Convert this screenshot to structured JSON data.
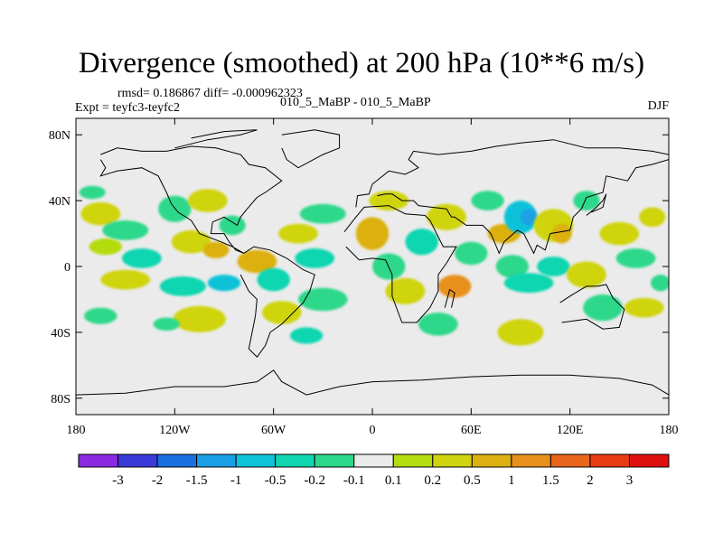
{
  "chart_data": {
    "type": "heatmap",
    "title": "Divergence (smoothed) at 200 hPa (10**6 m/s)",
    "stats_text": "rmsd= 0.186867 diff= -0.000962323",
    "expt_text": "Expt = teyfc3-teyfc2",
    "cases_text": "010_5_MaBP - 010_5_MaBP",
    "season": "DJF",
    "x_ticks": [
      {
        "value": -180,
        "label": "180"
      },
      {
        "value": -120,
        "label": "120W"
      },
      {
        "value": -60,
        "label": "60W"
      },
      {
        "value": 0,
        "label": "0"
      },
      {
        "value": 60,
        "label": "60E"
      },
      {
        "value": 120,
        "label": "120E"
      },
      {
        "value": 180,
        "label": "180"
      }
    ],
    "y_ticks": [
      {
        "value": 80,
        "label": "80N"
      },
      {
        "value": 40,
        "label": "40N"
      },
      {
        "value": 0,
        "label": "0"
      },
      {
        "value": -40,
        "label": "40S"
      },
      {
        "value": -80,
        "label": "80S"
      }
    ],
    "xlim": [
      -180,
      180
    ],
    "ylim": [
      -90,
      90
    ],
    "colorbar": {
      "levels": [
        "-3",
        "-2",
        "-1.5",
        "-1",
        "-0.5",
        "-0.2",
        "-0.1",
        "0.1",
        "0.2",
        "0.5",
        "1",
        "1.5",
        "2",
        "3"
      ],
      "colors": [
        "#8a2be2",
        "#3a3ad8",
        "#1a6fe0",
        "#1aa0e6",
        "#10c2d8",
        "#10d6b0",
        "#2ed88a",
        "#ebebeb",
        "#b4dc10",
        "#cfd40e",
        "#dcb010",
        "#e8901c",
        "#e8661c",
        "#e83c14",
        "#e01010"
      ]
    },
    "blobs": [
      {
        "lon": -165,
        "lat": 32,
        "rlon": 12,
        "rlat": 7,
        "bin": 9
      },
      {
        "lon": -150,
        "lat": 22,
        "rlon": 14,
        "rlat": 6,
        "bin": 6
      },
      {
        "lon": -162,
        "lat": 12,
        "rlon": 10,
        "rlat": 5,
        "bin": 8
      },
      {
        "lon": -140,
        "lat": 5,
        "rlon": 12,
        "rlat": 6,
        "bin": 5
      },
      {
        "lon": -150,
        "lat": -8,
        "rlon": 15,
        "rlat": 6,
        "bin": 9
      },
      {
        "lon": -165,
        "lat": -30,
        "rlon": 10,
        "rlat": 5,
        "bin": 6
      },
      {
        "lon": -120,
        "lat": 35,
        "rlon": 10,
        "rlat": 8,
        "bin": 6
      },
      {
        "lon": -100,
        "lat": 40,
        "rlon": 12,
        "rlat": 7,
        "bin": 9
      },
      {
        "lon": -110,
        "lat": 15,
        "rlon": 12,
        "rlat": 7,
        "bin": 9
      },
      {
        "lon": -95,
        "lat": 10,
        "rlon": 8,
        "rlat": 5,
        "bin": 10
      },
      {
        "lon": -115,
        "lat": -12,
        "rlon": 14,
        "rlat": 6,
        "bin": 5
      },
      {
        "lon": -90,
        "lat": -10,
        "rlon": 10,
        "rlat": 5,
        "bin": 4
      },
      {
        "lon": -105,
        "lat": -32,
        "rlon": 16,
        "rlat": 8,
        "bin": 9
      },
      {
        "lon": -125,
        "lat": -35,
        "rlon": 8,
        "rlat": 4,
        "bin": 6
      },
      {
        "lon": -85,
        "lat": 25,
        "rlon": 8,
        "rlat": 6,
        "bin": 6
      },
      {
        "lon": -70,
        "lat": 3,
        "rlon": 12,
        "rlat": 7,
        "bin": 10
      },
      {
        "lon": -60,
        "lat": -8,
        "rlon": 10,
        "rlat": 7,
        "bin": 5
      },
      {
        "lon": -55,
        "lat": -28,
        "rlon": 12,
        "rlat": 7,
        "bin": 9
      },
      {
        "lon": -45,
        "lat": 20,
        "rlon": 12,
        "rlat": 6,
        "bin": 9
      },
      {
        "lon": -30,
        "lat": 32,
        "rlon": 14,
        "rlat": 6,
        "bin": 6
      },
      {
        "lon": -35,
        "lat": 5,
        "rlon": 12,
        "rlat": 6,
        "bin": 5
      },
      {
        "lon": -30,
        "lat": -20,
        "rlon": 15,
        "rlat": 7,
        "bin": 6
      },
      {
        "lon": -40,
        "lat": -42,
        "rlon": 10,
        "rlat": 5,
        "bin": 5
      },
      {
        "lon": 0,
        "lat": 20,
        "rlon": 10,
        "rlat": 10,
        "bin": 10
      },
      {
        "lon": 10,
        "lat": 40,
        "rlon": 12,
        "rlat": 6,
        "bin": 9
      },
      {
        "lon": 10,
        "lat": 0,
        "rlon": 10,
        "rlat": 8,
        "bin": 6
      },
      {
        "lon": 20,
        "lat": -15,
        "rlon": 12,
        "rlat": 8,
        "bin": 9
      },
      {
        "lon": 30,
        "lat": 15,
        "rlon": 10,
        "rlat": 8,
        "bin": 5
      },
      {
        "lon": 45,
        "lat": 30,
        "rlon": 12,
        "rlat": 8,
        "bin": 9
      },
      {
        "lon": 50,
        "lat": -12,
        "rlon": 10,
        "rlat": 7,
        "bin": 11
      },
      {
        "lon": 60,
        "lat": 8,
        "rlon": 10,
        "rlat": 7,
        "bin": 6
      },
      {
        "lon": 40,
        "lat": -35,
        "rlon": 12,
        "rlat": 7,
        "bin": 6
      },
      {
        "lon": 70,
        "lat": 40,
        "rlon": 10,
        "rlat": 6,
        "bin": 6
      },
      {
        "lon": 80,
        "lat": 20,
        "rlon": 10,
        "rlat": 6,
        "bin": 10
      },
      {
        "lon": 90,
        "lat": 30,
        "rlon": 10,
        "rlat": 10,
        "bin": 4
      },
      {
        "lon": 95,
        "lat": 30,
        "rlon": 5,
        "rlat": 5,
        "bin": 3
      },
      {
        "lon": 85,
        "lat": 0,
        "rlon": 10,
        "rlat": 7,
        "bin": 6
      },
      {
        "lon": 95,
        "lat": -10,
        "rlon": 15,
        "rlat": 6,
        "bin": 5
      },
      {
        "lon": 110,
        "lat": 25,
        "rlon": 12,
        "rlat": 10,
        "bin": 9
      },
      {
        "lon": 115,
        "lat": 20,
        "rlon": 6,
        "rlat": 6,
        "bin": 10
      },
      {
        "lon": 110,
        "lat": 0,
        "rlon": 10,
        "rlat": 6,
        "bin": 5
      },
      {
        "lon": 90,
        "lat": -40,
        "rlon": 14,
        "rlat": 8,
        "bin": 9
      },
      {
        "lon": 130,
        "lat": 40,
        "rlon": 8,
        "rlat": 6,
        "bin": 6
      },
      {
        "lon": 130,
        "lat": -5,
        "rlon": 12,
        "rlat": 8,
        "bin": 9
      },
      {
        "lon": 140,
        "lat": -25,
        "rlon": 12,
        "rlat": 8,
        "bin": 6
      },
      {
        "lon": 150,
        "lat": 20,
        "rlon": 12,
        "rlat": 7,
        "bin": 9
      },
      {
        "lon": 160,
        "lat": 5,
        "rlon": 12,
        "rlat": 6,
        "bin": 6
      },
      {
        "lon": 170,
        "lat": 30,
        "rlon": 8,
        "rlat": 6,
        "bin": 9
      },
      {
        "lon": 165,
        "lat": -25,
        "rlon": 12,
        "rlat": 6,
        "bin": 9
      },
      {
        "lon": 175,
        "lat": -10,
        "rlon": 6,
        "rlat": 5,
        "bin": 6
      },
      {
        "lon": -170,
        "lat": 45,
        "rlon": 8,
        "rlat": 4,
        "bin": 6
      }
    ],
    "coastlines": [
      {
        "name": "greenland",
        "points": [
          [
            -55,
            80
          ],
          [
            -35,
            83
          ],
          [
            -20,
            80
          ],
          [
            -20,
            72
          ],
          [
            -30,
            68
          ],
          [
            -45,
            60
          ],
          [
            -52,
            65
          ],
          [
            -55,
            72
          ]
        ]
      },
      {
        "name": "north-america",
        "points": [
          [
            -165,
            68
          ],
          [
            -155,
            72
          ],
          [
            -140,
            70
          ],
          [
            -125,
            70
          ],
          [
            -110,
            73
          ],
          [
            -95,
            72
          ],
          [
            -80,
            68
          ],
          [
            -75,
            62
          ],
          [
            -65,
            60
          ],
          [
            -55,
            52
          ],
          [
            -65,
            45
          ],
          [
            -70,
            42
          ],
          [
            -76,
            35
          ],
          [
            -80,
            30
          ],
          [
            -82,
            25
          ],
          [
            -90,
            30
          ],
          [
            -97,
            27
          ],
          [
            -98,
            20
          ],
          [
            -90,
            20
          ],
          [
            -87,
            15
          ],
          [
            -83,
            10
          ],
          [
            -78,
            8
          ],
          [
            -85,
            12
          ],
          [
            -92,
            15
          ],
          [
            -105,
            20
          ],
          [
            -110,
            28
          ],
          [
            -118,
            33
          ],
          [
            -122,
            38
          ],
          [
            -125,
            45
          ],
          [
            -130,
            55
          ],
          [
            -140,
            60
          ],
          [
            -155,
            58
          ],
          [
            -165,
            55
          ],
          [
            -162,
            60
          ],
          [
            -165,
            65
          ]
        ]
      },
      {
        "name": "south-america",
        "points": [
          [
            -78,
            8
          ],
          [
            -72,
            12
          ],
          [
            -62,
            10
          ],
          [
            -52,
            5
          ],
          [
            -42,
            -2
          ],
          [
            -35,
            -5
          ],
          [
            -38,
            -15
          ],
          [
            -42,
            -22
          ],
          [
            -48,
            -28
          ],
          [
            -55,
            -35
          ],
          [
            -62,
            -40
          ],
          [
            -65,
            -48
          ],
          [
            -70,
            -55
          ],
          [
            -75,
            -50
          ],
          [
            -73,
            -40
          ],
          [
            -71,
            -30
          ],
          [
            -70,
            -20
          ],
          [
            -75,
            -15
          ],
          [
            -80,
            -5
          ]
        ]
      },
      {
        "name": "eurasia",
        "points": [
          [
            -10,
            36
          ],
          [
            -9,
            43
          ],
          [
            -2,
            44
          ],
          [
            0,
            50
          ],
          [
            5,
            54
          ],
          [
            10,
            58
          ],
          [
            20,
            56
          ],
          [
            28,
            60
          ],
          [
            22,
            65
          ],
          [
            25,
            70
          ],
          [
            40,
            68
          ],
          [
            60,
            70
          ],
          [
            75,
            73
          ],
          [
            90,
            75
          ],
          [
            110,
            77
          ],
          [
            130,
            72
          ],
          [
            150,
            72
          ],
          [
            170,
            70
          ],
          [
            180,
            68
          ],
          [
            180,
            65
          ],
          [
            170,
            62
          ],
          [
            160,
            60
          ],
          [
            155,
            52
          ],
          [
            142,
            55
          ],
          [
            140,
            45
          ],
          [
            130,
            42
          ],
          [
            127,
            35
          ],
          [
            122,
            30
          ],
          [
            120,
            22
          ],
          [
            108,
            20
          ],
          [
            105,
            10
          ],
          [
            100,
            13
          ],
          [
            98,
            8
          ],
          [
            92,
            20
          ],
          [
            88,
            22
          ],
          [
            80,
            15
          ],
          [
            77,
            8
          ],
          [
            72,
            20
          ],
          [
            67,
            25
          ],
          [
            57,
            25
          ],
          [
            50,
            30
          ],
          [
            48,
            30
          ],
          [
            45,
            35
          ],
          [
            36,
            36
          ],
          [
            28,
            37
          ],
          [
            25,
            40
          ],
          [
            18,
            40
          ],
          [
            12,
            44
          ],
          [
            8,
            44
          ],
          [
            3,
            43
          ]
        ]
      },
      {
        "name": "africa",
        "points": [
          [
            -17,
            21
          ],
          [
            -10,
            30
          ],
          [
            -5,
            36
          ],
          [
            10,
            37
          ],
          [
            20,
            32
          ],
          [
            32,
            31
          ],
          [
            35,
            28
          ],
          [
            43,
            12
          ],
          [
            51,
            12
          ],
          [
            45,
            2
          ],
          [
            40,
            -5
          ],
          [
            40,
            -15
          ],
          [
            35,
            -25
          ],
          [
            27,
            -34
          ],
          [
            18,
            -34
          ],
          [
            12,
            -18
          ],
          [
            12,
            -5
          ],
          [
            8,
            4
          ],
          [
            0,
            5
          ],
          [
            -8,
            4
          ],
          [
            -16,
            12
          ]
        ]
      },
      {
        "name": "australia",
        "points": [
          [
            114,
            -22
          ],
          [
            120,
            -18
          ],
          [
            130,
            -12
          ],
          [
            137,
            -12
          ],
          [
            142,
            -11
          ],
          [
            146,
            -19
          ],
          [
            153,
            -26
          ],
          [
            150,
            -37
          ],
          [
            140,
            -38
          ],
          [
            130,
            -32
          ],
          [
            115,
            -34
          ]
        ]
      },
      {
        "name": "antarctica",
        "points": [
          [
            -180,
            -78
          ],
          [
            -150,
            -77
          ],
          [
            -120,
            -73
          ],
          [
            -90,
            -73
          ],
          [
            -70,
            -70
          ],
          [
            -60,
            -63
          ],
          [
            -55,
            -70
          ],
          [
            -40,
            -78
          ],
          [
            -20,
            -73
          ],
          [
            0,
            -70
          ],
          [
            30,
            -69
          ],
          [
            60,
            -67
          ],
          [
            90,
            -66
          ],
          [
            120,
            -66
          ],
          [
            150,
            -68
          ],
          [
            170,
            -72
          ],
          [
            180,
            -78
          ]
        ]
      },
      {
        "name": "arctic-islands",
        "points": [
          [
            -120,
            72
          ],
          [
            -100,
            77
          ],
          [
            -80,
            80
          ],
          [
            -70,
            83
          ],
          [
            -90,
            82
          ],
          [
            -110,
            78
          ]
        ]
      },
      {
        "name": "madagascar",
        "points": [
          [
            44,
            -25
          ],
          [
            47,
            -14
          ],
          [
            50,
            -16
          ],
          [
            48,
            -25
          ]
        ]
      },
      {
        "name": "japan",
        "points": [
          [
            130,
            31
          ],
          [
            135,
            35
          ],
          [
            140,
            40
          ],
          [
            142,
            44
          ],
          [
            140,
            36
          ],
          [
            133,
            33
          ]
        ]
      }
    ]
  }
}
